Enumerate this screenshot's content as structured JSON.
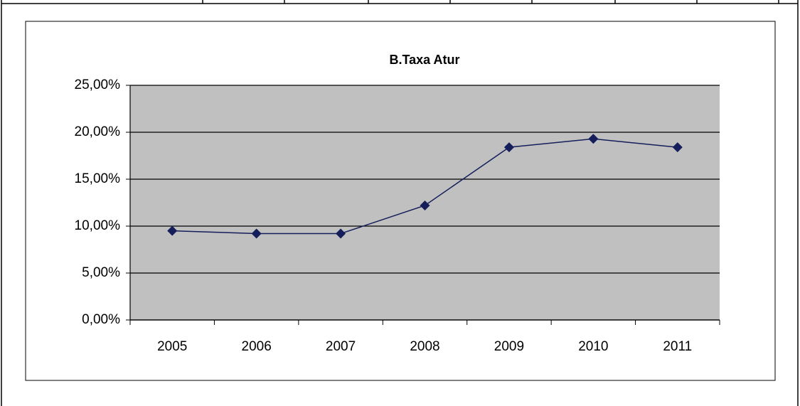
{
  "chart_data": {
    "type": "line",
    "title": "B.Taxa Atur",
    "categories": [
      "2005",
      "2006",
      "2007",
      "2008",
      "2009",
      "2010",
      "2011"
    ],
    "series": [
      {
        "name": "B.Taxa Atur",
        "color": "#141e5a",
        "values": [
          9.5,
          9.2,
          9.2,
          12.2,
          18.4,
          19.3,
          18.4
        ]
      }
    ],
    "ylim": [
      0,
      25
    ],
    "yticks": [
      {
        "value": 0,
        "label": "0,00%"
      },
      {
        "value": 5,
        "label": "5,00%"
      },
      {
        "value": 10,
        "label": "10,00%"
      },
      {
        "value": 15,
        "label": "15,00%"
      },
      {
        "value": 20,
        "label": "20,00%"
      },
      {
        "value": 25,
        "label": "25,00%"
      }
    ],
    "grid": true,
    "plot_background": "#c0c0c0"
  }
}
